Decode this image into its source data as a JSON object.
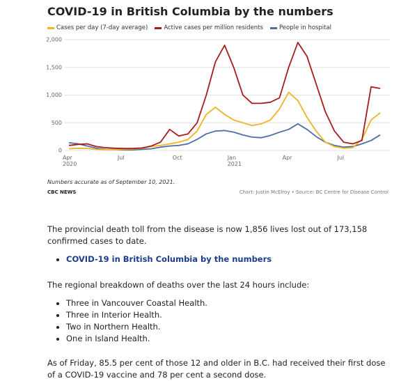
{
  "chart_data": {
    "type": "line",
    "title": "COVID-19 in British Columbia by the numbers",
    "categories": [
      "Apr 2020",
      null,
      null,
      null,
      null,
      null,
      "Jul",
      null,
      null,
      null,
      null,
      null,
      "Oct",
      null,
      null,
      null,
      null,
      null,
      "Jan 2021",
      null,
      null,
      null,
      null,
      null,
      "Apr",
      null,
      null,
      null,
      null,
      null,
      "Jul",
      null,
      null,
      null,
      null
    ],
    "series": [
      {
        "name": "Cases per day (7-day average)",
        "color": "#f0b323",
        "values": [
          30,
          40,
          35,
          20,
          15,
          15,
          20,
          25,
          40,
          70,
          90,
          120,
          150,
          200,
          350,
          650,
          780,
          650,
          550,
          500,
          450,
          480,
          550,
          750,
          1050,
          900,
          600,
          350,
          150,
          70,
          40,
          50,
          200,
          550,
          680
        ]
      },
      {
        "name": "Active cases per million residents",
        "color": "#a61c1c",
        "values": [
          90,
          110,
          120,
          70,
          50,
          40,
          35,
          35,
          45,
          80,
          150,
          380,
          260,
          300,
          500,
          1000,
          1600,
          1900,
          1500,
          1000,
          850,
          850,
          870,
          950,
          1500,
          1950,
          1700,
          1200,
          700,
          350,
          150,
          120,
          180,
          1150,
          1120
        ]
      },
      {
        "name": "People in hospital",
        "color": "#4a6fa5",
        "values": [
          140,
          120,
          80,
          40,
          20,
          15,
          10,
          10,
          20,
          30,
          60,
          80,
          90,
          120,
          200,
          300,
          350,
          360,
          330,
          280,
          240,
          230,
          270,
          330,
          380,
          480,
          380,
          250,
          150,
          90,
          60,
          70,
          120,
          180,
          280
        ]
      }
    ],
    "ylim": [
      0,
      2000
    ],
    "yticks": [
      0,
      500,
      {
        "value": 1000,
        "label": "1,000"
      },
      {
        "value": 1500,
        "label": "1,500"
      },
      {
        "value": 2000,
        "label": "2,000"
      }
    ],
    "grid": true,
    "note": "Numbers accurate as of September 10, 2021.",
    "brand": "CBC NEWS",
    "credit": "Chart: Justin McElroy • Source: BC Centre for Disease Control"
  },
  "article": {
    "p1": "The provincial death toll from the disease is now 1,856 lives lost out of 173,158 confirmed cases to date.",
    "link": "COVID-19 in British Columbia by the numbers",
    "p2": "The regional breakdown of deaths over the last 24 hours include:",
    "list": [
      "Three in Vancouver Coastal Health.",
      "Three in Interior Health.",
      "Two in Northern Health.",
      "One in Island Health."
    ],
    "p3": "As of Friday, 85.5 per cent of those 12 and older in B.C. had received their first dose of a COVID-19 vaccine and 78 per cent a second dose."
  }
}
